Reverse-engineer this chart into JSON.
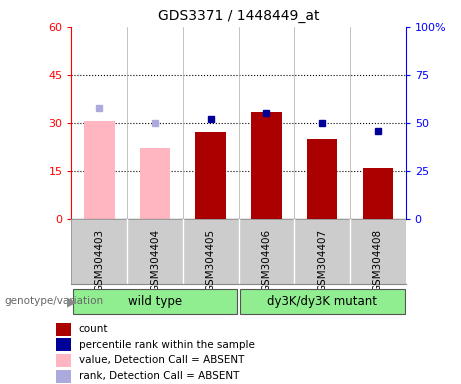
{
  "title": "GDS3371 / 1448449_at",
  "samples": [
    "GSM304403",
    "GSM304404",
    "GSM304405",
    "GSM304406",
    "GSM304407",
    "GSM304408"
  ],
  "bar_values": [
    30.5,
    22.0,
    27.0,
    33.5,
    25.0,
    16.0
  ],
  "bar_absent": [
    true,
    true,
    false,
    false,
    false,
    false
  ],
  "rank_values_pct": [
    58.0,
    50.0,
    52.0,
    55.0,
    50.0,
    46.0
  ],
  "rank_absent": [
    true,
    true,
    false,
    false,
    false,
    false
  ],
  "bar_color_present": "#AA0000",
  "bar_color_absent": "#FFB6C1",
  "rank_color_present": "#000099",
  "rank_color_absent": "#AAAADD",
  "ylim_left": [
    0,
    60
  ],
  "ylim_right": [
    0,
    100
  ],
  "yticks_left": [
    0,
    15,
    30,
    45,
    60
  ],
  "ytick_labels_left": [
    "0",
    "15",
    "30",
    "45",
    "60"
  ],
  "yticks_right_pct": [
    0,
    25,
    50,
    75,
    100
  ],
  "ytick_labels_right": [
    "0",
    "25",
    "50",
    "75",
    "100%"
  ],
  "group_labels": [
    "wild type",
    "dy3K/dy3K mutant"
  ],
  "group_color": "#90EE90",
  "genotype_label": "genotype/variation",
  "legend_items": [
    {
      "label": "count",
      "color": "#AA0000"
    },
    {
      "label": "percentile rank within the sample",
      "color": "#000099"
    },
    {
      "label": "value, Detection Call = ABSENT",
      "color": "#FFB6C1"
    },
    {
      "label": "rank, Detection Call = ABSENT",
      "color": "#AAAADD"
    }
  ]
}
